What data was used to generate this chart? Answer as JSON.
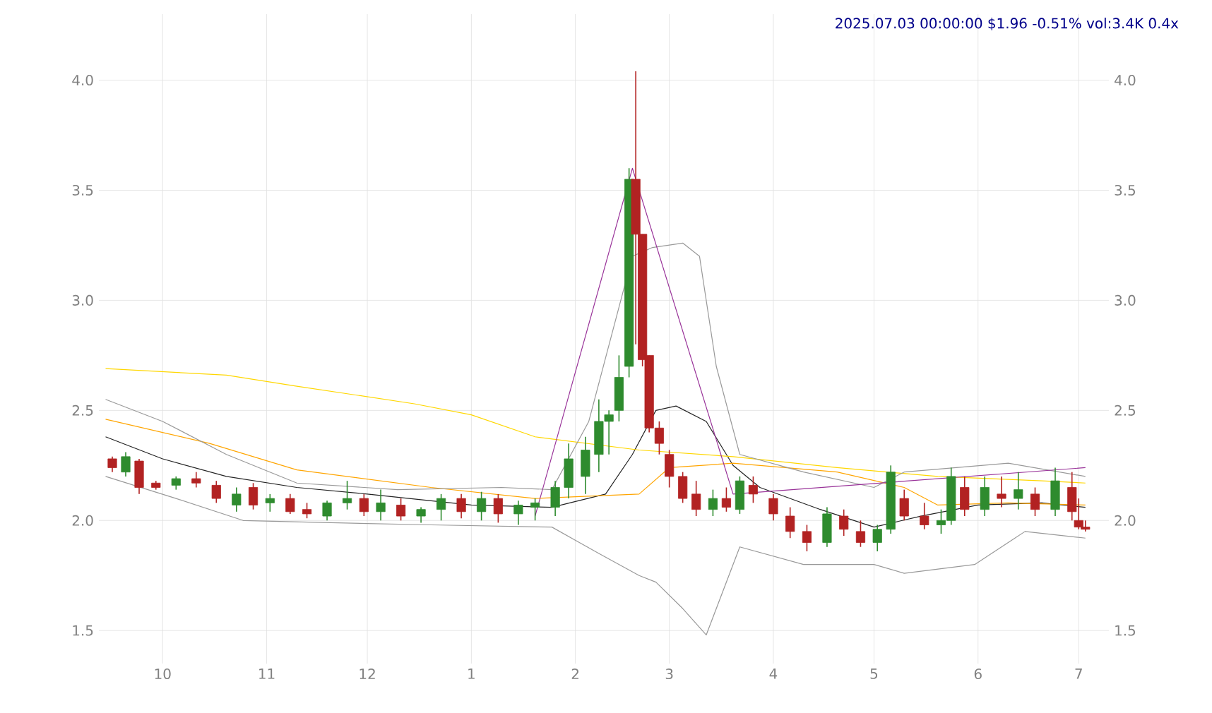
{
  "chart_data": {
    "type": "candlestick",
    "title": "2025.07.03 00:00:00 $1.96 -0.51% vol:3.4K 0.4x",
    "x": [
      "2024-09-16",
      "2024-09-20",
      "2024-09-24",
      "2024-09-29",
      "2024-10-05",
      "2024-10-11",
      "2024-10-17",
      "2024-10-23",
      "2024-10-28",
      "2024-11-02",
      "2024-11-08",
      "2024-11-13",
      "2024-11-19",
      "2024-11-25",
      "2024-11-30",
      "2024-12-05",
      "2024-12-11",
      "2024-12-17",
      "2024-12-23",
      "2024-12-29",
      "2025-01-04",
      "2025-01-09",
      "2025-01-15",
      "2025-01-20",
      "2025-01-26",
      "2025-01-30",
      "2025-02-04",
      "2025-02-08",
      "2025-02-11",
      "2025-02-14",
      "2025-02-17",
      "2025-02-19",
      "2025-02-21",
      "2025-02-23",
      "2025-02-26",
      "2025-03-01",
      "2025-03-05",
      "2025-03-09",
      "2025-03-14",
      "2025-03-18",
      "2025-03-22",
      "2025-03-26",
      "2025-04-01",
      "2025-04-06",
      "2025-04-11",
      "2025-04-17",
      "2025-04-22",
      "2025-04-27",
      "2025-05-02",
      "2025-05-06",
      "2025-05-10",
      "2025-05-16",
      "2025-05-21",
      "2025-05-24",
      "2025-05-28",
      "2025-06-03",
      "2025-06-08",
      "2025-06-13",
      "2025-06-18",
      "2025-06-24",
      "2025-06-29",
      "2025-07-01",
      "2025-07-03"
    ],
    "ohlc": [
      [
        2.28,
        2.29,
        2.22,
        2.24
      ],
      [
        2.22,
        2.31,
        2.2,
        2.29
      ],
      [
        2.27,
        2.28,
        2.12,
        2.15
      ],
      [
        2.17,
        2.18,
        2.14,
        2.15
      ],
      [
        2.16,
        2.2,
        2.14,
        2.19
      ],
      [
        2.19,
        2.22,
        2.15,
        2.17
      ],
      [
        2.16,
        2.18,
        2.08,
        2.1
      ],
      [
        2.07,
        2.15,
        2.04,
        2.12
      ],
      [
        2.15,
        2.17,
        2.05,
        2.07
      ],
      [
        2.08,
        2.12,
        2.04,
        2.1
      ],
      [
        2.1,
        2.12,
        2.03,
        2.04
      ],
      [
        2.05,
        2.08,
        2.01,
        2.03
      ],
      [
        2.02,
        2.09,
        2.0,
        2.08
      ],
      [
        2.08,
        2.18,
        2.05,
        2.1
      ],
      [
        2.1,
        2.12,
        2.02,
        2.04
      ],
      [
        2.04,
        2.14,
        2.0,
        2.08
      ],
      [
        2.07,
        2.1,
        2.0,
        2.02
      ],
      [
        2.02,
        2.06,
        1.99,
        2.05
      ],
      [
        2.05,
        2.12,
        2.0,
        2.1
      ],
      [
        2.1,
        2.12,
        2.01,
        2.04
      ],
      [
        2.04,
        2.13,
        2.0,
        2.1
      ],
      [
        2.1,
        2.12,
        1.99,
        2.03
      ],
      [
        2.03,
        2.09,
        1.98,
        2.07
      ],
      [
        2.06,
        2.1,
        2.0,
        2.08
      ],
      [
        2.06,
        2.18,
        2.02,
        2.15
      ],
      [
        2.15,
        2.35,
        2.1,
        2.28
      ],
      [
        2.2,
        2.38,
        2.12,
        2.32
      ],
      [
        2.3,
        2.55,
        2.22,
        2.45
      ],
      [
        2.45,
        2.5,
        2.3,
        2.48
      ],
      [
        2.5,
        2.75,
        2.45,
        2.65
      ],
      [
        2.7,
        3.6,
        2.65,
        3.55
      ],
      [
        3.55,
        4.04,
        2.8,
        3.3
      ],
      [
        3.3,
        3.3,
        2.7,
        2.73
      ],
      [
        2.75,
        2.75,
        2.4,
        2.42
      ],
      [
        2.42,
        2.45,
        2.3,
        2.35
      ],
      [
        2.3,
        2.32,
        2.15,
        2.2
      ],
      [
        2.2,
        2.22,
        2.08,
        2.1
      ],
      [
        2.12,
        2.18,
        2.02,
        2.05
      ],
      [
        2.05,
        2.14,
        2.02,
        2.1
      ],
      [
        2.1,
        2.15,
        2.04,
        2.06
      ],
      [
        2.05,
        2.2,
        2.03,
        2.18
      ],
      [
        2.16,
        2.2,
        2.08,
        2.12
      ],
      [
        2.1,
        2.12,
        2.0,
        2.03
      ],
      [
        2.02,
        2.06,
        1.92,
        1.95
      ],
      [
        1.95,
        1.98,
        1.86,
        1.9
      ],
      [
        1.9,
        2.06,
        1.88,
        2.03
      ],
      [
        2.02,
        2.05,
        1.93,
        1.96
      ],
      [
        1.95,
        2.0,
        1.88,
        1.9
      ],
      [
        1.9,
        1.98,
        1.86,
        1.96
      ],
      [
        1.96,
        2.25,
        1.94,
        2.22
      ],
      [
        2.1,
        2.14,
        2.0,
        2.02
      ],
      [
        2.02,
        2.08,
        1.96,
        1.98
      ],
      [
        1.98,
        2.05,
        1.94,
        2.0
      ],
      [
        2.0,
        2.24,
        1.98,
        2.2
      ],
      [
        2.15,
        2.2,
        2.02,
        2.05
      ],
      [
        2.05,
        2.2,
        2.02,
        2.15
      ],
      [
        2.12,
        2.2,
        2.06,
        2.1
      ],
      [
        2.1,
        2.22,
        2.05,
        2.14
      ],
      [
        2.12,
        2.15,
        2.02,
        2.05
      ],
      [
        2.05,
        2.24,
        2.02,
        2.18
      ],
      [
        2.15,
        2.22,
        2.0,
        2.04
      ],
      [
        2.0,
        2.1,
        1.96,
        1.97
      ],
      [
        1.97,
        2.0,
        1.95,
        1.96
      ]
    ],
    "series": [
      {
        "type": "line",
        "color": "#222222",
        "x": [
          "2024-09-14",
          "2024-10-01",
          "2024-10-20",
          "2024-11-10",
          "2024-12-01",
          "2025-01-01",
          "2025-01-25",
          "2025-02-10",
          "2025-02-18",
          "2025-02-25",
          "2025-03-03",
          "2025-03-12",
          "2025-03-20",
          "2025-03-28",
          "2025-04-15",
          "2025-05-01",
          "2025-05-15",
          "2025-06-01",
          "2025-06-20",
          "2025-07-03"
        ],
        "values": [
          2.38,
          2.28,
          2.2,
          2.15,
          2.12,
          2.07,
          2.06,
          2.12,
          2.3,
          2.5,
          2.52,
          2.45,
          2.25,
          2.15,
          2.05,
          1.97,
          2.02,
          2.07,
          2.08,
          2.06
        ]
      },
      {
        "type": "line",
        "color": "#ffa500",
        "x": [
          "2024-09-14",
          "2024-10-15",
          "2024-11-10",
          "2024-12-20",
          "2025-01-20",
          "2025-02-20",
          "2025-03-01",
          "2025-03-20",
          "2025-04-20",
          "2025-05-10",
          "2025-05-20",
          "2025-06-10",
          "2025-07-03"
        ],
        "values": [
          2.46,
          2.35,
          2.23,
          2.15,
          2.1,
          2.12,
          2.24,
          2.26,
          2.22,
          2.15,
          2.07,
          2.08,
          2.07
        ]
      },
      {
        "type": "line",
        "color": "#ffd700",
        "x": [
          "2024-09-14",
          "2024-10-20",
          "2024-11-10",
          "2024-12-15",
          "2025-01-01",
          "2025-01-20",
          "2025-02-20",
          "2025-03-20",
          "2025-04-20",
          "2025-05-20",
          "2025-06-20",
          "2025-07-03"
        ],
        "values": [
          2.69,
          2.66,
          2.61,
          2.53,
          2.48,
          2.38,
          2.32,
          2.29,
          2.24,
          2.2,
          2.18,
          2.17
        ]
      },
      {
        "type": "line",
        "color": "#999999",
        "x": [
          "2024-09-14",
          "2024-10-01",
          "2024-10-20",
          "2024-11-10",
          "2024-12-10",
          "2025-01-10",
          "2025-01-25",
          "2025-02-05",
          "2025-02-18",
          "2025-02-24",
          "2025-03-05",
          "2025-03-10",
          "2025-03-15",
          "2025-03-22",
          "2025-04-10",
          "2025-05-01",
          "2025-05-10",
          "2025-06-10",
          "2025-07-03"
        ],
        "values": [
          2.55,
          2.45,
          2.3,
          2.17,
          2.14,
          2.15,
          2.14,
          2.45,
          3.2,
          3.24,
          3.26,
          3.2,
          2.7,
          2.3,
          2.22,
          2.15,
          2.22,
          2.26,
          2.2
        ]
      },
      {
        "type": "line",
        "color": "#999999",
        "x": [
          "2024-09-14",
          "2024-10-05",
          "2024-10-25",
          "2024-11-20",
          "2024-12-20",
          "2025-01-25",
          "2025-02-08",
          "2025-02-20",
          "2025-02-25",
          "2025-03-05",
          "2025-03-12",
          "2025-03-22",
          "2025-04-10",
          "2025-05-01",
          "2025-05-10",
          "2025-05-31",
          "2025-06-15",
          "2025-07-03"
        ],
        "values": [
          2.2,
          2.1,
          2.0,
          1.99,
          1.98,
          1.97,
          1.85,
          1.75,
          1.72,
          1.6,
          1.48,
          1.88,
          1.8,
          1.8,
          1.76,
          1.8,
          1.95,
          1.92
        ]
      },
      {
        "type": "line",
        "color": "#993399",
        "x": [
          "2025-01-20",
          "2025-02-18",
          "2025-03-20",
          "2025-07-03"
        ],
        "values": [
          2.02,
          3.6,
          2.12,
          2.24
        ]
      }
    ],
    "xlim": [
      "2024-09-12",
      "2025-07-10"
    ],
    "xticks": [
      {
        "value": "2024-10-01",
        "label": "10"
      },
      {
        "value": "2024-11-01",
        "label": "11"
      },
      {
        "value": "2024-12-01",
        "label": "12"
      },
      {
        "value": "2025-01-01",
        "label": "1"
      },
      {
        "value": "2025-02-01",
        "label": "2"
      },
      {
        "value": "2025-03-01",
        "label": "3"
      },
      {
        "value": "2025-04-01",
        "label": "4"
      },
      {
        "value": "2025-05-01",
        "label": "5"
      },
      {
        "value": "2025-06-01",
        "label": "6"
      },
      {
        "value": "2025-07-01",
        "label": "7"
      }
    ],
    "ylim": [
      1.35,
      4.3
    ],
    "yticks": [
      {
        "value": 1.5,
        "label": "1.5"
      },
      {
        "value": 2.0,
        "label": "2.0"
      },
      {
        "value": 2.5,
        "label": "2.5"
      },
      {
        "value": 3.0,
        "label": "3.0"
      },
      {
        "value": 3.5,
        "label": "3.5"
      },
      {
        "value": 4.0,
        "label": "4.0"
      }
    ],
    "y2lim": [
      1.35,
      4.3
    ],
    "y2ticks": [
      {
        "value": 1.5,
        "label": "1.5"
      },
      {
        "value": 2.0,
        "label": "2.0"
      },
      {
        "value": 2.5,
        "label": "2.5"
      },
      {
        "value": 3.0,
        "label": "3.0"
      },
      {
        "value": 3.5,
        "label": "3.5"
      },
      {
        "value": 4.0,
        "label": "4.0"
      }
    ],
    "grid": true
  }
}
